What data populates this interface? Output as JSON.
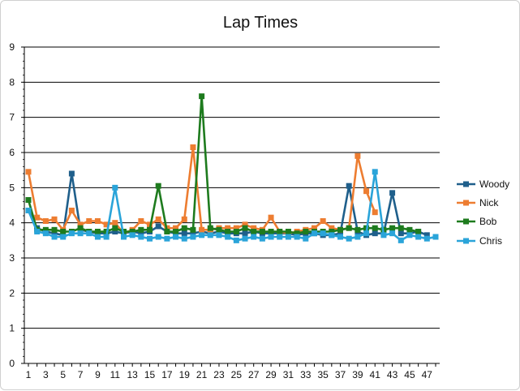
{
  "chart_data": {
    "type": "line",
    "title": "Lap Times",
    "xlabel": "",
    "ylabel": "",
    "ylim": [
      0,
      9
    ],
    "y_ticks": [
      "0",
      "1",
      "2",
      "3",
      "4",
      "5",
      "6",
      "7",
      "8",
      "9"
    ],
    "x_tick_labels": [
      "1",
      "3",
      "5",
      "7",
      "9",
      "11",
      "13",
      "15",
      "17",
      "19",
      "21",
      "23",
      "25",
      "27",
      "29",
      "31",
      "33",
      "35",
      "37",
      "39",
      "41",
      "43",
      "45",
      "47"
    ],
    "x": [
      1,
      2,
      3,
      4,
      5,
      6,
      7,
      8,
      9,
      10,
      11,
      12,
      13,
      14,
      15,
      16,
      17,
      18,
      19,
      20,
      21,
      22,
      23,
      24,
      25,
      26,
      27,
      28,
      29,
      30,
      31,
      32,
      33,
      34,
      35,
      36,
      37,
      38,
      39,
      40,
      41,
      42,
      43,
      44,
      45,
      46,
      47,
      48
    ],
    "grid": true,
    "legend_position": "right",
    "series": [
      {
        "name": "Woody",
        "color": "#1f5f8b",
        "values": [
          4.35,
          3.85,
          3.75,
          3.7,
          3.65,
          5.4,
          3.8,
          3.75,
          3.7,
          3.7,
          3.75,
          3.7,
          3.75,
          3.7,
          3.75,
          3.9,
          3.75,
          3.7,
          3.7,
          3.7,
          3.75,
          3.7,
          3.75,
          3.7,
          3.7,
          3.7,
          3.75,
          3.7,
          3.7,
          3.7,
          3.7,
          3.65,
          3.7,
          3.7,
          3.65,
          3.65,
          3.7,
          5.05,
          3.75,
          3.65,
          3.7,
          3.7,
          4.85,
          3.7,
          3.7,
          3.75,
          3.65,
          null
        ]
      },
      {
        "name": "Nick",
        "color": "#ed7d31",
        "values": [
          5.45,
          4.15,
          4.05,
          4.1,
          3.8,
          4.35,
          3.95,
          4.05,
          4.05,
          3.95,
          4.0,
          3.7,
          3.8,
          4.05,
          3.95,
          4.1,
          3.85,
          3.85,
          4.1,
          6.15,
          3.8,
          3.8,
          3.85,
          3.85,
          3.85,
          3.95,
          3.85,
          3.8,
          4.15,
          3.75,
          3.7,
          3.75,
          3.8,
          3.85,
          4.05,
          3.85,
          3.8,
          3.85,
          5.9,
          4.9,
          4.3,
          null,
          null,
          null,
          null,
          null,
          null,
          null
        ]
      },
      {
        "name": "Bob",
        "color": "#1e7b1e",
        "values": [
          4.65,
          3.8,
          3.8,
          3.8,
          3.75,
          3.75,
          3.85,
          3.75,
          3.75,
          3.75,
          3.85,
          3.75,
          3.75,
          3.8,
          3.8,
          5.05,
          3.75,
          3.75,
          3.85,
          3.8,
          7.6,
          3.85,
          3.8,
          3.75,
          3.75,
          3.85,
          3.75,
          3.75,
          3.75,
          3.75,
          3.75,
          3.7,
          3.75,
          3.75,
          3.75,
          3.75,
          3.8,
          3.85,
          3.8,
          3.85,
          3.85,
          3.8,
          3.85,
          3.85,
          3.8,
          3.75,
          null,
          null
        ]
      },
      {
        "name": "Chris",
        "color": "#2aa4d9",
        "values": [
          4.35,
          3.75,
          3.7,
          3.6,
          3.6,
          3.7,
          3.7,
          3.7,
          3.6,
          3.6,
          5.0,
          3.6,
          3.65,
          3.6,
          3.55,
          3.6,
          3.55,
          3.6,
          3.55,
          3.6,
          3.65,
          3.65,
          3.65,
          3.6,
          3.5,
          3.55,
          3.6,
          3.55,
          3.6,
          3.6,
          3.6,
          3.6,
          3.55,
          3.7,
          3.7,
          3.65,
          3.6,
          3.55,
          3.6,
          3.7,
          5.45,
          3.65,
          3.7,
          3.5,
          3.65,
          3.6,
          3.55,
          3.6
        ]
      }
    ]
  }
}
